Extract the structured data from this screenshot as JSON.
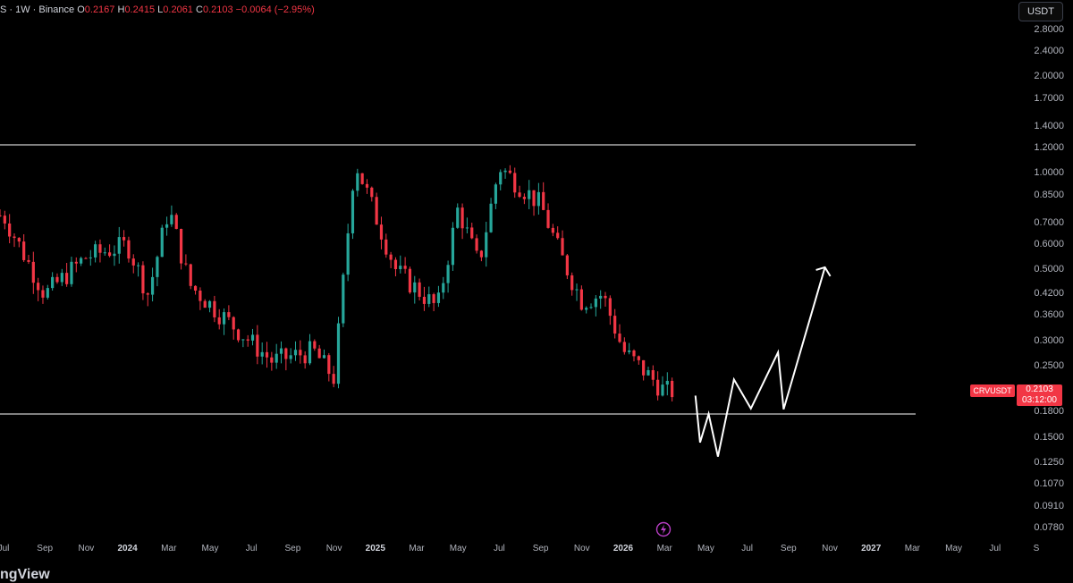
{
  "header": {
    "symbol_partial": "S · 1W · Binance",
    "o_label": "O",
    "o_value": "0.2167",
    "h_label": "H",
    "h_value": "0.2415",
    "l_label": "L",
    "l_value": "0.2061",
    "c_label": "C",
    "c_value": "0.2103",
    "change": "−0.0064 (−2.95%)"
  },
  "currency_button": "USDT",
  "price_tag": {
    "symbol": "CRVUSDT",
    "price": "0.2103",
    "countdown": "03:12:00"
  },
  "brand": "ngView",
  "colors": {
    "up": "#26a69a",
    "down": "#f23645",
    "background": "#000000",
    "annotation": "#ffffff"
  },
  "chart_data": {
    "type": "candlestick",
    "scale": "log",
    "y_ticks": [
      "2.8000",
      "2.4000",
      "2.0000",
      "1.7000",
      "1.4000",
      "1.2000",
      "1.0000",
      "0.8500",
      "0.7000",
      "0.6000",
      "0.5000",
      "0.4200",
      "0.3600",
      "0.3000",
      "0.2500",
      "0.1800",
      "0.1500",
      "0.1250",
      "0.1070",
      "0.0910",
      "0.0780"
    ],
    "x_ticks": [
      "Jul",
      "Sep",
      "Nov",
      "2024",
      "Mar",
      "May",
      "Jul",
      "Sep",
      "Nov",
      "2025",
      "Mar",
      "May",
      "Jul",
      "Sep",
      "Nov",
      "2026",
      "Mar",
      "May",
      "Jul",
      "Sep",
      "Nov",
      "2027",
      "Mar",
      "May",
      "Jul",
      "S"
    ],
    "x_year_ticks": [
      "2024",
      "2025",
      "2026",
      "2027"
    ],
    "horizontal_levels": [
      1.22,
      0.184
    ],
    "series_keypoints_close": [
      {
        "date": "2023-07",
        "close": 0.74
      },
      {
        "date": "2023-09",
        "close": 0.42
      },
      {
        "date": "2023-11",
        "close": 0.55
      },
      {
        "date": "2024-01",
        "close": 0.6
      },
      {
        "date": "2024-02",
        "close": 0.42
      },
      {
        "date": "2024-03",
        "close": 0.78
      },
      {
        "date": "2024-04",
        "close": 0.45
      },
      {
        "date": "2024-06",
        "close": 0.34
      },
      {
        "date": "2024-08",
        "close": 0.26
      },
      {
        "date": "2024-10",
        "close": 0.28
      },
      {
        "date": "2024-11",
        "close": 0.23
      },
      {
        "date": "2024-12",
        "close": 1.1
      },
      {
        "date": "2025-02",
        "close": 0.5
      },
      {
        "date": "2025-04",
        "close": 0.38
      },
      {
        "date": "2025-05",
        "close": 0.78
      },
      {
        "date": "2025-06",
        "close": 0.52
      },
      {
        "date": "2025-07",
        "close": 1.05
      },
      {
        "date": "2025-09",
        "close": 0.8
      },
      {
        "date": "2025-10",
        "close": 0.55
      },
      {
        "date": "2025-11",
        "close": 0.4
      },
      {
        "date": "2025-12",
        "close": 0.42
      },
      {
        "date": "2026-01",
        "close": 0.28
      },
      {
        "date": "2026-03",
        "close": 0.21
      }
    ],
    "projection_path": [
      {
        "date": "2026-04",
        "price": 0.203
      },
      {
        "date": "2026-04",
        "price": 0.145
      },
      {
        "date": "2026-05",
        "price": 0.178
      },
      {
        "date": "2026-05",
        "price": 0.131
      },
      {
        "date": "2026-06",
        "price": 0.228
      },
      {
        "date": "2026-07",
        "price": 0.185
      },
      {
        "date": "2026-08",
        "price": 0.277
      },
      {
        "date": "2026-08",
        "price": 0.184
      },
      {
        "date": "2026-10",
        "price": 0.51
      }
    ]
  }
}
